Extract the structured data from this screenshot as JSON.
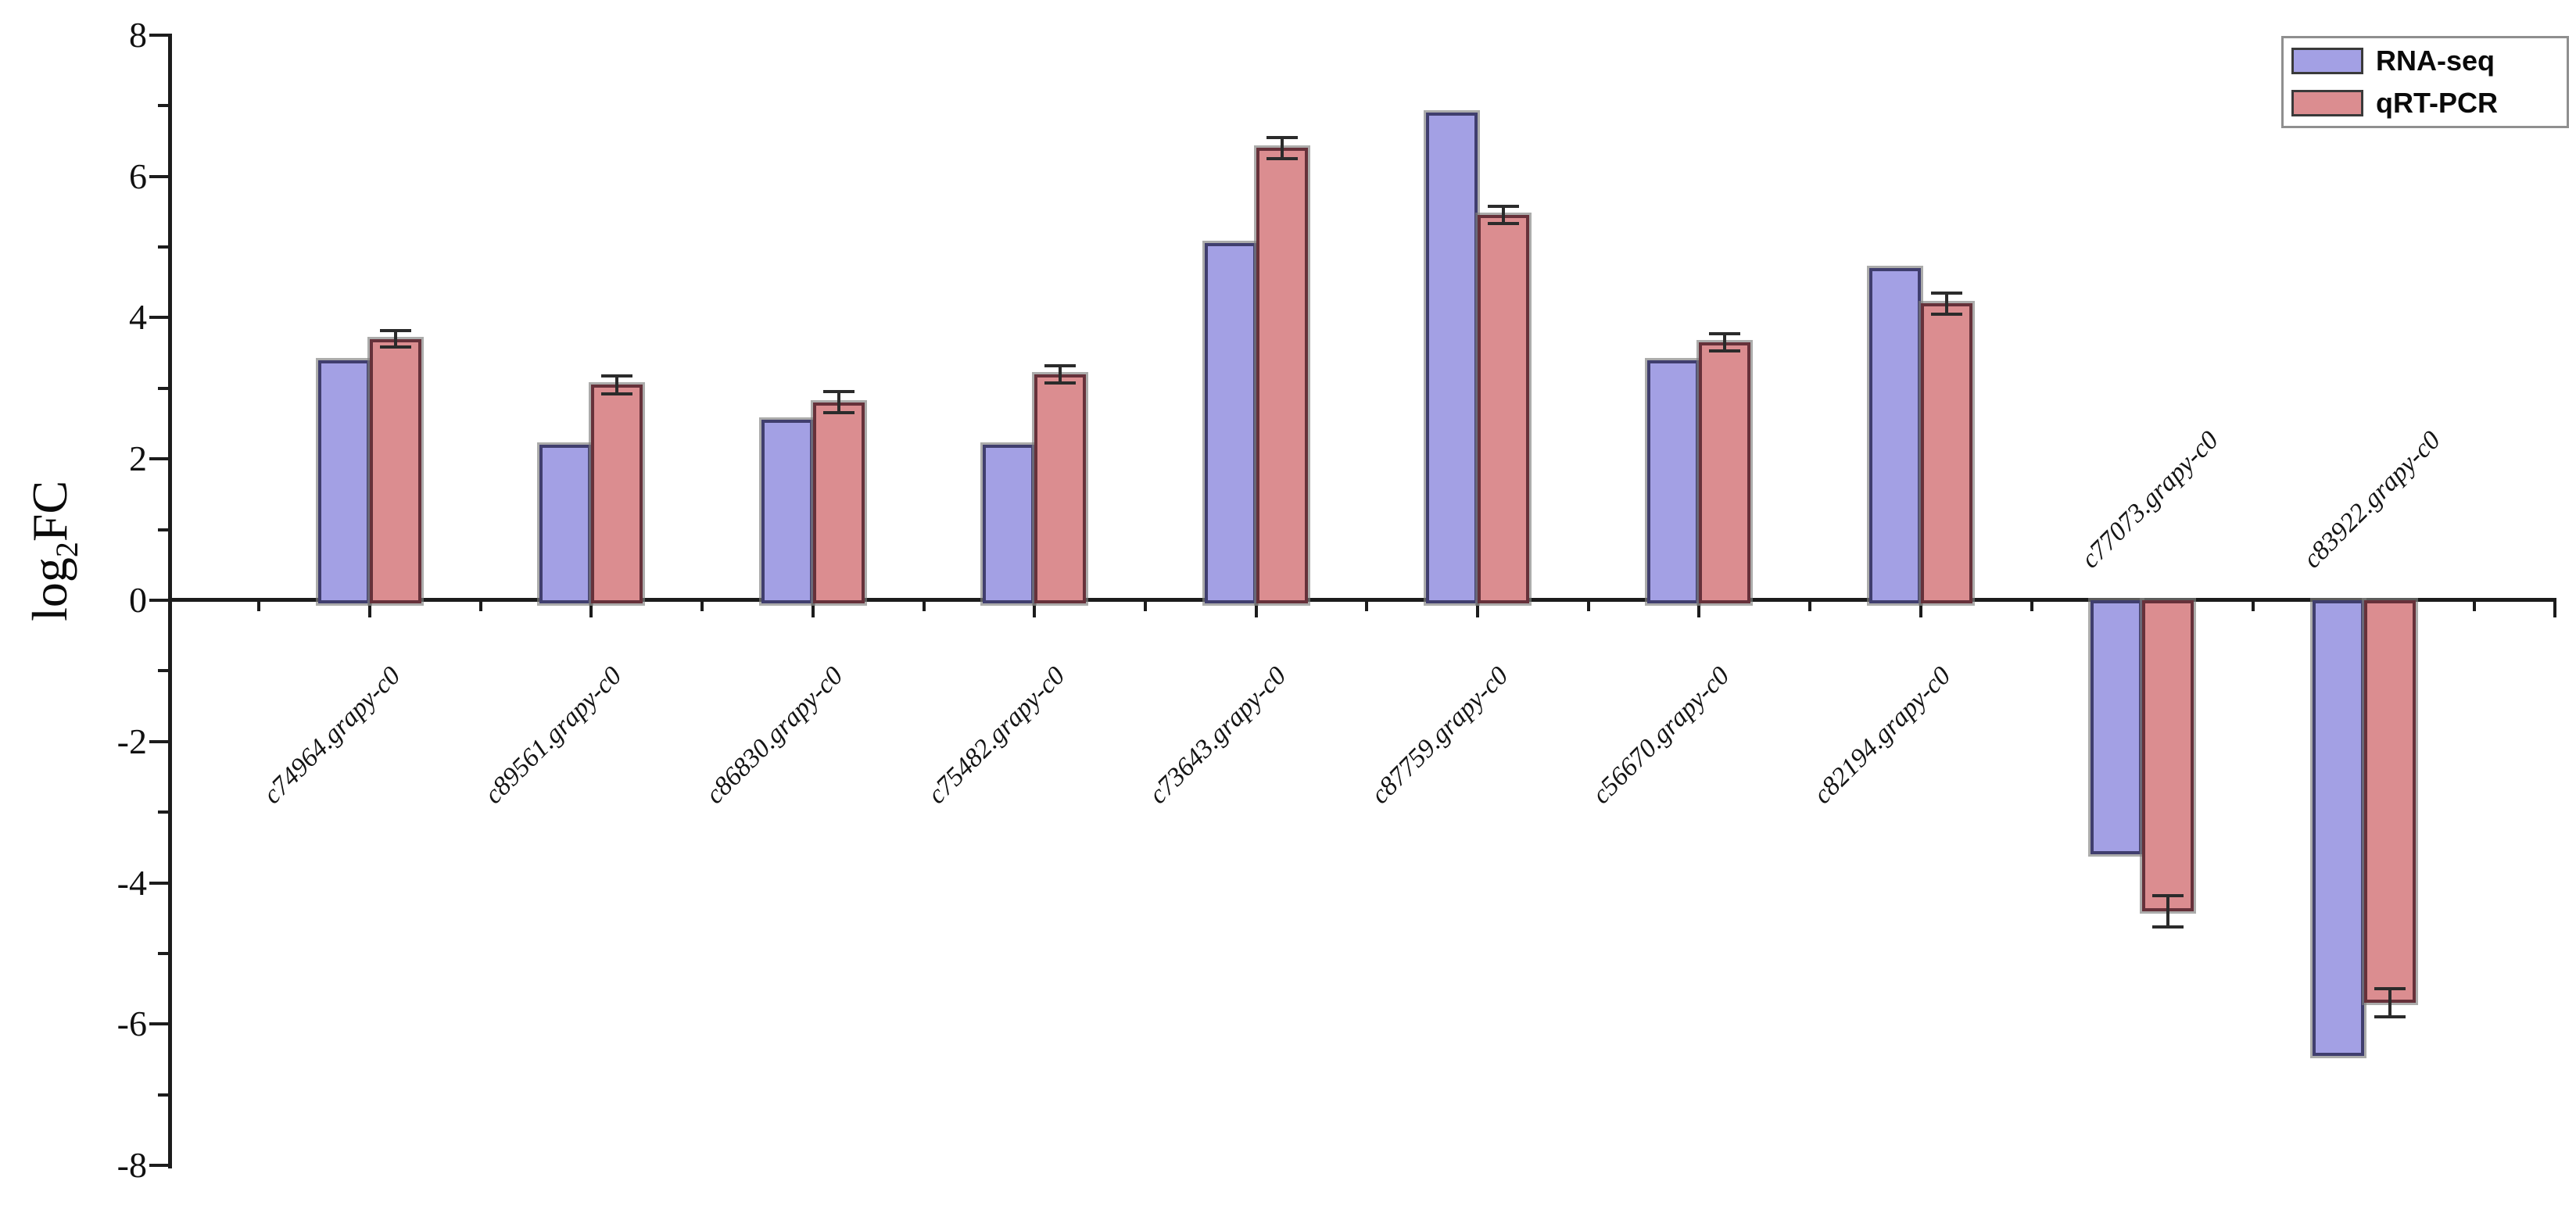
{
  "chart_data": {
    "type": "bar",
    "title": "",
    "ylabel": "log2FC",
    "ylabel_rich": {
      "prefix": "log",
      "sub": "2",
      "suffix": "FC"
    },
    "ylim": [
      -8,
      8
    ],
    "y_major_step": 2,
    "y_minor_step": 1,
    "grid": false,
    "legend_position": "top-right",
    "axis_color": "#1c1c1c",
    "error_bar_color": "#2b2b2b",
    "categories": [
      "c74964.grapy-c0",
      "c89561.grapy-c0",
      "c86830.grapy-c0",
      "c75482.grapy-c0",
      "c73643.grapy-c0",
      "c87759.grapy-c0",
      "c56670.grapy-c0",
      "c82194.grapy-c0",
      "c77073.grapy-c0",
      "c83922.grapy-c0"
    ],
    "series": [
      {
        "name": "RNA-seq",
        "fill": "#a3a0e4",
        "border": "#403e6e",
        "values": [
          3.4,
          2.2,
          2.55,
          2.2,
          5.05,
          6.9,
          3.4,
          4.7,
          -3.6,
          -6.45
        ]
      },
      {
        "name": "qRT-PCR",
        "fill": "#db8d90",
        "border": "#66313a",
        "values": [
          3.7,
          3.05,
          2.8,
          3.2,
          6.4,
          5.45,
          3.65,
          4.2,
          -4.4,
          -5.7
        ],
        "errors": [
          0.12,
          0.13,
          0.15,
          0.12,
          0.15,
          0.12,
          0.12,
          0.15,
          0.22,
          0.2
        ]
      }
    ]
  }
}
